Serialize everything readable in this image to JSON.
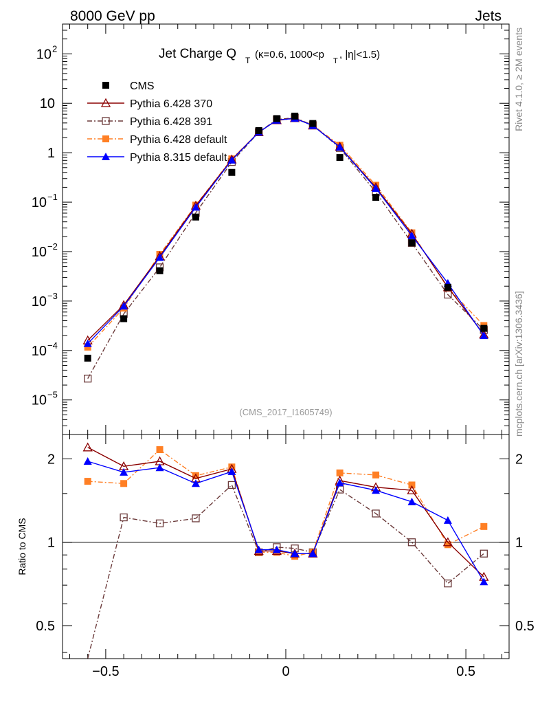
{
  "header": {
    "left": "8000 GeV pp",
    "right": "Jets",
    "side_top": "Rivet 4.1.0, ≥ 2M events",
    "side_bottom": "mcplots.cern.ch [arXiv:1306.3436]",
    "watermark": "(CMS_2017_I1605749)"
  },
  "colors": {
    "cms": "#000000",
    "p6_370": "#8b0000",
    "p6_391": "#6b3a3a",
    "p6_default": "#ff7f24",
    "p8_default": "#0000ff"
  },
  "chart_data": [
    {
      "type": "line",
      "yscale": "log",
      "title": "Jet Charge Q_T (κ=0.6, 1000<p_T, |η|<1.5)",
      "ylim": [
        2e-06,
        400
      ],
      "xlim": [
        -0.62,
        0.62
      ],
      "yticks": [
        {
          "value": 1e-05,
          "label": "10",
          "exp": "−5"
        },
        {
          "value": 0.0001,
          "label": "10",
          "exp": "−4"
        },
        {
          "value": 0.001,
          "label": "10",
          "exp": "−3"
        },
        {
          "value": 0.01,
          "label": "10",
          "exp": "−2"
        },
        {
          "value": 0.1,
          "label": "10",
          "exp": "−1"
        },
        {
          "value": 1,
          "label": "1",
          "exp": ""
        },
        {
          "value": 10,
          "label": "10",
          "exp": ""
        },
        {
          "value": 100,
          "label": "10",
          "exp": "2"
        }
      ],
      "x": [
        -0.55,
        -0.45,
        -0.35,
        -0.25,
        -0.15,
        -0.075,
        -0.025,
        0.025,
        0.075,
        0.15,
        0.25,
        0.35,
        0.45,
        0.55
      ],
      "series": [
        {
          "name": "CMS",
          "marker": "square-filled",
          "style": "none",
          "values": [
            7e-05,
            0.00044,
            0.0041,
            0.05,
            0.4,
            2.8,
            4.9,
            5.5,
            3.9,
            0.8,
            0.125,
            0.015,
            0.0019,
            0.00028
          ]
        },
        {
          "name": "Pythia 6.428 370",
          "marker": "triangle-open",
          "style": "solid",
          "values": [
            0.00016,
            0.00083,
            0.0081,
            0.085,
            0.73,
            2.6,
            4.55,
            5.0,
            3.55,
            1.32,
            0.2,
            0.023,
            0.0019,
            0.00021
          ]
        },
        {
          "name": "Pythia 6.428 391",
          "marker": "square-open",
          "style": "dashdot",
          "values": [
            2.7e-05,
            0.00055,
            0.0048,
            0.061,
            0.65,
            2.6,
            4.7,
            5.1,
            3.6,
            1.25,
            0.16,
            0.015,
            0.00135,
            0.00026
          ]
        },
        {
          "name": "Pythia 6.428 default",
          "marker": "square-filled",
          "style": "dashdot",
          "values": [
            0.000117,
            0.00072,
            0.0088,
            0.087,
            0.75,
            2.6,
            4.5,
            4.9,
            3.6,
            1.42,
            0.22,
            0.024,
            0.00185,
            0.00032
          ]
        },
        {
          "name": "Pythia 8.315 default",
          "marker": "triangle-filled",
          "style": "solid",
          "values": [
            0.000138,
            0.00079,
            0.0076,
            0.079,
            0.71,
            2.6,
            4.55,
            4.95,
            3.55,
            1.3,
            0.19,
            0.021,
            0.0023,
            0.0002
          ]
        }
      ]
    },
    {
      "type": "line",
      "yscale": "log",
      "ylabel": "Ratio to CMS",
      "ylim": [
        0.38,
        2.45
      ],
      "xlim": [
        -0.62,
        0.62
      ],
      "yticks": [
        {
          "value": 0.5,
          "label": "0.5"
        },
        {
          "value": 1,
          "label": "1"
        },
        {
          "value": 2,
          "label": "2"
        }
      ],
      "xticks": [
        {
          "value": -0.5,
          "label": "−0.5"
        },
        {
          "value": 0,
          "label": "0"
        },
        {
          "value": 0.5,
          "label": "0.5"
        }
      ],
      "x": [
        -0.55,
        -0.45,
        -0.35,
        -0.25,
        -0.15,
        -0.075,
        -0.025,
        0.025,
        0.075,
        0.15,
        0.25,
        0.35,
        0.45,
        0.55
      ],
      "reference": 1,
      "series": [
        {
          "name": "Pythia 6.428 370",
          "values": [
            2.2,
            1.88,
            1.96,
            1.7,
            1.84,
            0.93,
            0.93,
            0.91,
            0.91,
            1.67,
            1.58,
            1.54,
            1.0,
            0.75
          ]
        },
        {
          "name": "Pythia 6.428 391",
          "values": [
            0.38,
            1.23,
            1.17,
            1.22,
            1.61,
            0.92,
            0.96,
            0.95,
            0.92,
            1.55,
            1.27,
            1.0,
            0.71,
            0.91
          ]
        },
        {
          "name": "Pythia 6.428 default",
          "values": [
            1.66,
            1.63,
            2.16,
            1.74,
            1.87,
            0.92,
            0.92,
            0.89,
            0.92,
            1.78,
            1.75,
            1.61,
            0.98,
            1.14
          ]
        },
        {
          "name": "Pythia 8.315 default",
          "values": [
            1.96,
            1.79,
            1.86,
            1.63,
            1.8,
            0.94,
            0.94,
            0.91,
            0.91,
            1.64,
            1.54,
            1.4,
            1.2,
            0.72
          ]
        }
      ]
    }
  ]
}
